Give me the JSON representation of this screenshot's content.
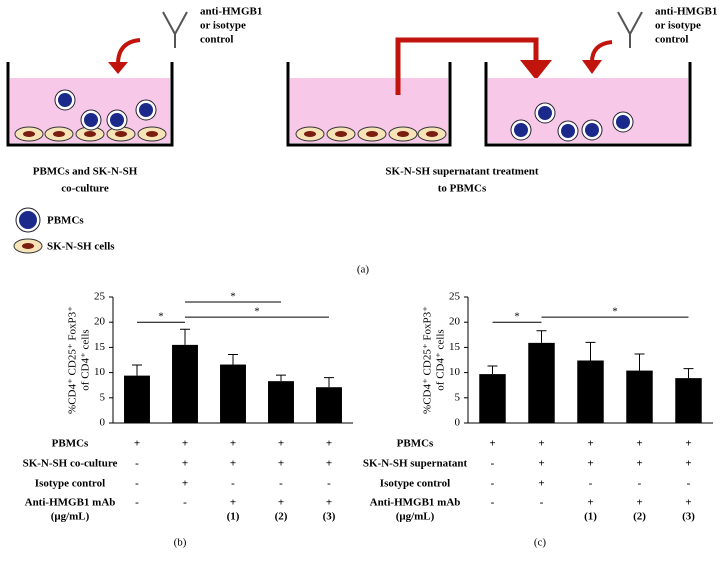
{
  "diagram": {
    "antibody_left": [
      "anti-HMGB1",
      "or isotype",
      "control"
    ],
    "antibody_right": [
      "anti-HMGB1",
      "or isotype",
      "control"
    ],
    "caption_left": [
      "PBMCs and SK-N-SH",
      "co-culture"
    ],
    "caption_right": [
      "SK-N-SH supernatant treatment",
      "to PBMCs"
    ],
    "legend": [
      "PBMCs",
      "SK-N-SH cells"
    ],
    "panel": "(a)"
  },
  "chart_data": [
    {
      "type": "bar",
      "panel": "(b)",
      "ylabel": [
        "%CD4⁺ CD25⁺ FoxP3⁺",
        "of CD4⁺ cells"
      ],
      "values": [
        9.4,
        15.5,
        11.6,
        8.3,
        7.1
      ],
      "errors": [
        2.1,
        3.1,
        2.0,
        1.2,
        1.9
      ],
      "color": "#000000",
      "ylim": [
        0,
        25
      ],
      "yticks": [
        0,
        5,
        10,
        15,
        20,
        25
      ],
      "significance": [
        {
          "from": 0,
          "to": 1,
          "label": "*"
        },
        {
          "from": 1,
          "to": 3,
          "label": "*"
        },
        {
          "from": 1,
          "to": 4,
          "label": "*"
        }
      ],
      "table": {
        "rows": [
          {
            "label": [
              "PBMCs"
            ],
            "cells": [
              "+",
              "+",
              "+",
              "+",
              "+"
            ]
          },
          {
            "label": [
              "SK-N-SH co-culture"
            ],
            "cells": [
              "-",
              "+",
              "+",
              "+",
              "+"
            ]
          },
          {
            "label": [
              "Isotype control"
            ],
            "cells": [
              "-",
              "+",
              "-",
              "-",
              "-"
            ]
          },
          {
            "label": [
              "Anti-HMGB1 mAb",
              "(μg/mL)"
            ],
            "cells": [
              "-",
              "-",
              "+",
              "+",
              "+"
            ]
          }
        ],
        "dose_labels": [
          "(1)",
          "(2)",
          "(3)"
        ]
      }
    },
    {
      "type": "bar",
      "panel": "(c)",
      "ylabel": [
        "%CD4⁺ CD25⁺ FoxP3⁺",
        "of CD4⁺ cells"
      ],
      "values": [
        9.7,
        15.9,
        12.4,
        10.4,
        8.9
      ],
      "errors": [
        1.6,
        2.4,
        3.6,
        3.3,
        1.9
      ],
      "color": "#000000",
      "ylim": [
        0,
        25
      ],
      "yticks": [
        0,
        5,
        10,
        15,
        20,
        25
      ],
      "significance": [
        {
          "from": 0,
          "to": 1,
          "label": "*"
        },
        {
          "from": 1,
          "to": 4,
          "label": "*"
        }
      ],
      "table": {
        "rows": [
          {
            "label": [
              "PBMCs"
            ],
            "cells": [
              "+",
              "+",
              "+",
              "+",
              "+"
            ]
          },
          {
            "label": [
              "SK-N-SH supernatant"
            ],
            "cells": [
              "-",
              "+",
              "+",
              "+",
              "+"
            ]
          },
          {
            "label": [
              "Isotype control"
            ],
            "cells": [
              "-",
              "+",
              "-",
              "-",
              "-"
            ]
          },
          {
            "label": [
              "Anti-HMGB1 mAb",
              "(μg/mL)"
            ],
            "cells": [
              "-",
              "-",
              "+",
              "+",
              "+"
            ]
          }
        ],
        "dose_labels": [
          "(1)",
          "(2)",
          "(3)"
        ]
      }
    }
  ]
}
